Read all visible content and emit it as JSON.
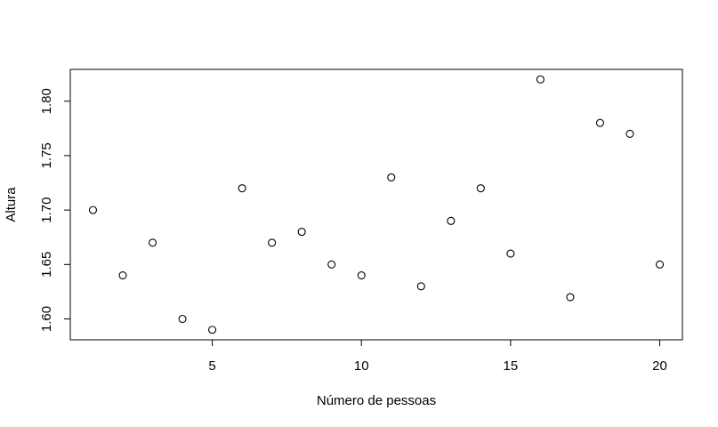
{
  "chart_data": {
    "type": "scatter",
    "title": "",
    "xlabel": "Número de pessoas",
    "ylabel": "Altura",
    "xlim": [
      0.24,
      20.76
    ],
    "ylim": [
      1.5808,
      1.8292
    ],
    "xticks": [
      5,
      10,
      15,
      20
    ],
    "yticks": [
      1.6,
      1.65,
      1.7,
      1.75,
      1.8
    ],
    "ytick_labels": [
      "1.60",
      "1.65",
      "1.70",
      "1.75",
      "1.80"
    ],
    "grid": false,
    "marker": "open-circle",
    "point_color": "#000000",
    "x": [
      1,
      2,
      3,
      4,
      5,
      6,
      7,
      8,
      9,
      10,
      11,
      12,
      13,
      14,
      15,
      16,
      17,
      18,
      19,
      20
    ],
    "y": [
      1.7,
      1.64,
      1.67,
      1.6,
      1.59,
      1.72,
      1.67,
      1.68,
      1.65,
      1.64,
      1.73,
      1.63,
      1.69,
      1.72,
      1.66,
      1.82,
      1.62,
      1.78,
      1.77,
      1.65
    ]
  }
}
